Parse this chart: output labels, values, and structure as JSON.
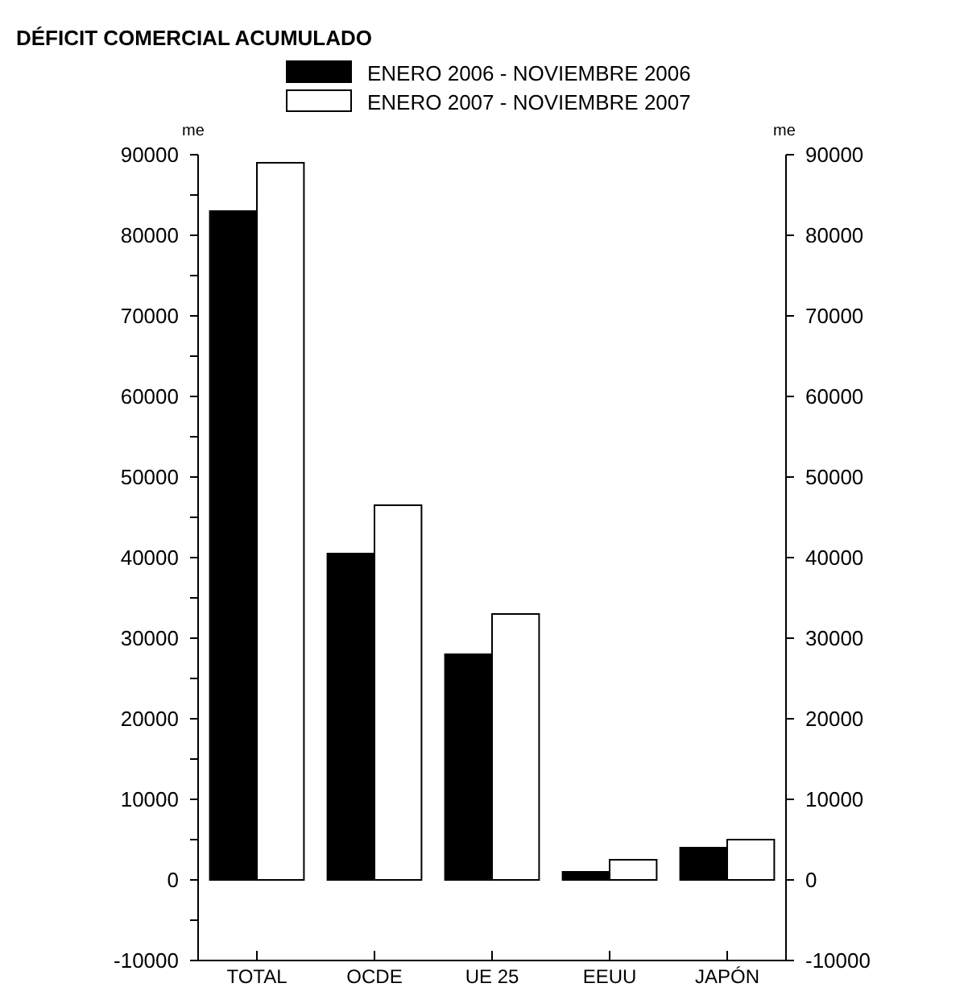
{
  "chart_data": {
    "type": "bar",
    "title": "DÉFICIT COMERCIAL ACUMULADO",
    "ylabel": "me",
    "y2label": "me",
    "categories": [
      "TOTAL",
      "OCDE",
      "UE 25",
      "EEUU",
      "JAPÓN"
    ],
    "series": [
      {
        "name": "ENERO 2006 - NOVIEMBRE 2006",
        "color": "#000000",
        "values": [
          83000,
          40500,
          28000,
          1000,
          4000
        ]
      },
      {
        "name": "ENERO 2007 - NOVIEMBRE 2007",
        "color": "#ffffff",
        "values": [
          89000,
          46500,
          33000,
          2500,
          5000
        ]
      }
    ],
    "ylim": [
      -10000,
      90000
    ],
    "yticks": [
      -10000,
      {
        "value": -5000,
        "label": null
      },
      0,
      {
        "value": 5000,
        "label": null
      },
      10000,
      {
        "value": 15000,
        "label": null
      },
      20000,
      {
        "value": 25000,
        "label": null
      },
      30000,
      {
        "value": 35000,
        "label": null
      },
      40000,
      {
        "value": 45000,
        "label": null
      },
      50000,
      {
        "value": 55000,
        "label": null
      },
      60000,
      {
        "value": 65000,
        "label": null
      },
      70000,
      {
        "value": 75000,
        "label": null
      },
      80000,
      {
        "value": 85000,
        "label": null
      },
      90000
    ],
    "y2lim": [
      -10000,
      90000
    ],
    "y2ticks": [
      -10000,
      0,
      10000,
      20000,
      30000,
      40000,
      50000,
      60000,
      70000,
      80000,
      90000
    ],
    "legend": "top",
    "grid": false
  }
}
